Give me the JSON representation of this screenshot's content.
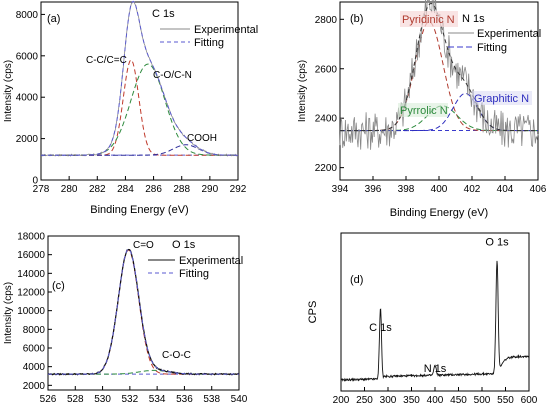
{
  "chart_data": [
    {
      "type": "line",
      "panel_label": "(a)",
      "title": "C 1s",
      "xlabel": "Binding Energy (eV)",
      "ylabel": "Intensity (cps)",
      "xlim": [
        278,
        292
      ],
      "ylim": [
        0,
        8600
      ],
      "xticks": [
        "278",
        "280",
        "282",
        "284",
        "286",
        "288",
        "290",
        "292"
      ],
      "yticks": [
        "0",
        "2000",
        "4000",
        "6000",
        "8000"
      ],
      "xtick_values": [
        278,
        280,
        282,
        284,
        286,
        288,
        290,
        292
      ],
      "ytick_values": [
        0,
        2000,
        4000,
        6000,
        8000
      ],
      "legend": [
        {
          "name": "Experimental",
          "color": "#888888",
          "dash": "none"
        },
        {
          "name": "Fitting",
          "color": "#5a5ad0",
          "dash": "4,3"
        }
      ],
      "baseline": 1200,
      "peaks": [
        {
          "label": "C-C/C=C",
          "center": 284.4,
          "height": 4600,
          "sigma": 0.55,
          "color": "#c0392b"
        },
        {
          "label": "C-O/C-N",
          "center": 285.6,
          "height": 4400,
          "sigma": 1.2,
          "color": "#2e8b3e"
        },
        {
          "label": "COOH",
          "center": 288.3,
          "height": 500,
          "sigma": 0.9,
          "color": "#2e2e9a"
        }
      ]
    },
    {
      "type": "line",
      "panel_label": "(b)",
      "title": "N 1s",
      "xlabel": "Binding Energy (eV)",
      "ylabel": "Intensity (cps)",
      "xlim": [
        394,
        406
      ],
      "ylim": [
        2150,
        2870
      ],
      "xticks": [
        "394",
        "396",
        "398",
        "400",
        "402",
        "404",
        "406"
      ],
      "yticks": [
        "2200",
        "2400",
        "2600",
        "2800"
      ],
      "xtick_values": [
        394,
        396,
        398,
        400,
        402,
        404,
        406
      ],
      "ytick_values": [
        2200,
        2400,
        2600,
        2800
      ],
      "legend": [
        {
          "name": "Experimental",
          "color": "#888888",
          "dash": "none"
        },
        {
          "name": "Fitting",
          "color": "#3a3acc",
          "dash": "6,3"
        }
      ],
      "baseline": 2350,
      "peaks": [
        {
          "label": "Pyridinic N",
          "center": 399.4,
          "height": 440,
          "sigma": 0.85,
          "color": "#b03a2e"
        },
        {
          "label": "Pyrrolic N",
          "center": 400.2,
          "height": 100,
          "sigma": 0.9,
          "color": "#2e8b3e"
        },
        {
          "label": "Graphitic N",
          "center": 401.6,
          "height": 150,
          "sigma": 0.75,
          "color": "#2e2ebf"
        }
      ]
    },
    {
      "type": "line",
      "panel_label": "(c)",
      "title": "O 1s",
      "xlabel": "",
      "ylabel": "Intensity (cps)",
      "xlim": [
        526,
        540
      ],
      "ylim": [
        1500,
        18000
      ],
      "xticks": [
        "526",
        "528",
        "530",
        "532",
        "534",
        "536",
        "538",
        "540"
      ],
      "yticks": [
        "2000",
        "4000",
        "6000",
        "8000",
        "10000",
        "12000",
        "14000",
        "16000",
        "18000"
      ],
      "xtick_values": [
        526,
        528,
        530,
        532,
        534,
        536,
        538,
        540
      ],
      "ytick_values": [
        2000,
        4000,
        6000,
        8000,
        10000,
        12000,
        14000,
        16000,
        18000
      ],
      "legend": [
        {
          "name": "Experimental",
          "color": "#111111",
          "dash": "none"
        },
        {
          "name": "Fitting",
          "color": "#5a5ad0",
          "dash": "4,3"
        }
      ],
      "baseline": 3200,
      "peaks": [
        {
          "label": "C=O",
          "center": 531.9,
          "height": 13300,
          "sigma": 0.75,
          "color": "#c0392b"
        },
        {
          "label": "C-O-C",
          "center": 533.8,
          "height": 400,
          "sigma": 1.1,
          "color": "#2e8b3e"
        }
      ]
    },
    {
      "type": "line",
      "panel_label": "(d)",
      "title": "",
      "xlabel": "",
      "ylabel": "CPS",
      "xlim": [
        200,
        600
      ],
      "ylim": [
        0,
        1
      ],
      "xticks": [
        "200",
        "250",
        "300",
        "350",
        "400",
        "450",
        "500",
        "550",
        "600"
      ],
      "xtick_values": [
        200,
        250,
        300,
        350,
        400,
        450,
        500,
        550,
        600
      ],
      "yticks": [],
      "annotations": [
        {
          "label": "C 1s",
          "x": 284,
          "y": 0.38
        },
        {
          "label": "N 1s",
          "x": 400,
          "y": 0.12
        },
        {
          "label": "O 1s",
          "x": 532,
          "y": 0.92
        }
      ],
      "survey_peaks": [
        {
          "center": 284,
          "height": 0.45,
          "sigma": 2.2
        },
        {
          "center": 400,
          "height": 0.06,
          "sigma": 2.5
        },
        {
          "center": 532,
          "height": 0.72,
          "sigma": 2.4
        }
      ]
    }
  ]
}
